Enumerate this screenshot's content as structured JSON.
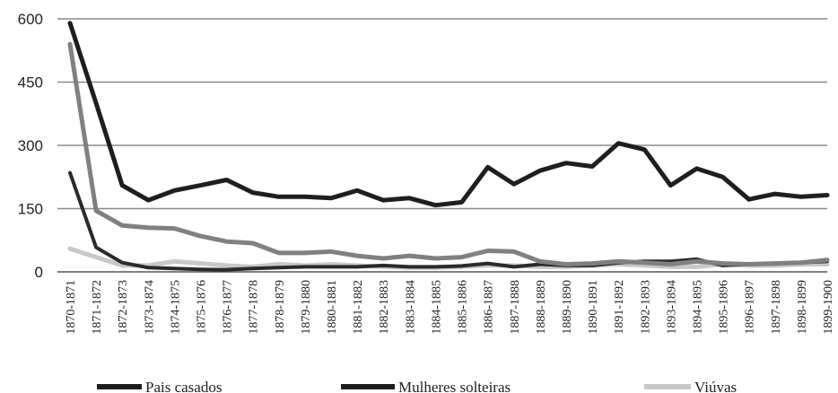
{
  "chart_data": {
    "type": "line",
    "title": "",
    "xlabel": "",
    "ylabel": "",
    "ylim": [
      0,
      600
    ],
    "yticks": [
      "0",
      "150",
      "300",
      "450",
      "600"
    ],
    "grid": true,
    "legend_position": "bottom",
    "categories": [
      "1870-1871",
      "1871-1872",
      "1872-1873",
      "1873-1874",
      "1874-1875",
      "1875-1876",
      "1876-1877",
      "1877-1878",
      "1878-1879",
      "1879-1880",
      "1880-1881",
      "1881-1882",
      "1882-1883",
      "1883-1884",
      "1884-1885",
      "1885-1886",
      "1886-1887",
      "1887-1888",
      "1888-1889",
      "1889-1890",
      "1890-1891",
      "1891-1892",
      "1892-1893",
      "1893-1894",
      "1894-1895",
      "1895-1896",
      "1896-1897",
      "1897-1898",
      "1898-1899",
      "1899-1900"
    ],
    "series": [
      {
        "name": "Pais casados",
        "color": "#1e1e1e",
        "values": [
          590,
          400,
          205,
          170,
          193,
          205,
          218,
          188,
          178,
          178,
          175,
          193,
          170,
          175,
          158,
          165,
          248,
          208,
          240,
          258,
          250,
          305,
          290,
          205,
          245,
          225,
          172,
          185,
          178,
          182
        ]
      },
      {
        "name": "Mulheres solteiras",
        "color": "#808080",
        "values": [
          540,
          145,
          110,
          105,
          103,
          85,
          72,
          68,
          45,
          45,
          48,
          38,
          32,
          38,
          32,
          35,
          50,
          48,
          25,
          18,
          20,
          25,
          22,
          18,
          25,
          20,
          18,
          20,
          22,
          28
        ]
      },
      {
        "name": "",
        "color": "#2a2a2a",
        "values": [
          235,
          58,
          22,
          10,
          8,
          6,
          5,
          8,
          10,
          12,
          12,
          12,
          15,
          12,
          12,
          14,
          20,
          12,
          18,
          15,
          15,
          22,
          25,
          25,
          30,
          15,
          18,
          20,
          22,
          25
        ]
      },
      {
        "name": "Viúvas",
        "color": "#c8c8c8",
        "values": [
          55,
          35,
          15,
          15,
          25,
          20,
          15,
          12,
          18,
          15,
          18,
          15,
          12,
          10,
          10,
          12,
          15,
          15,
          12,
          12,
          15,
          18,
          15,
          12,
          12,
          18,
          15,
          15,
          18,
          18
        ]
      }
    ]
  }
}
